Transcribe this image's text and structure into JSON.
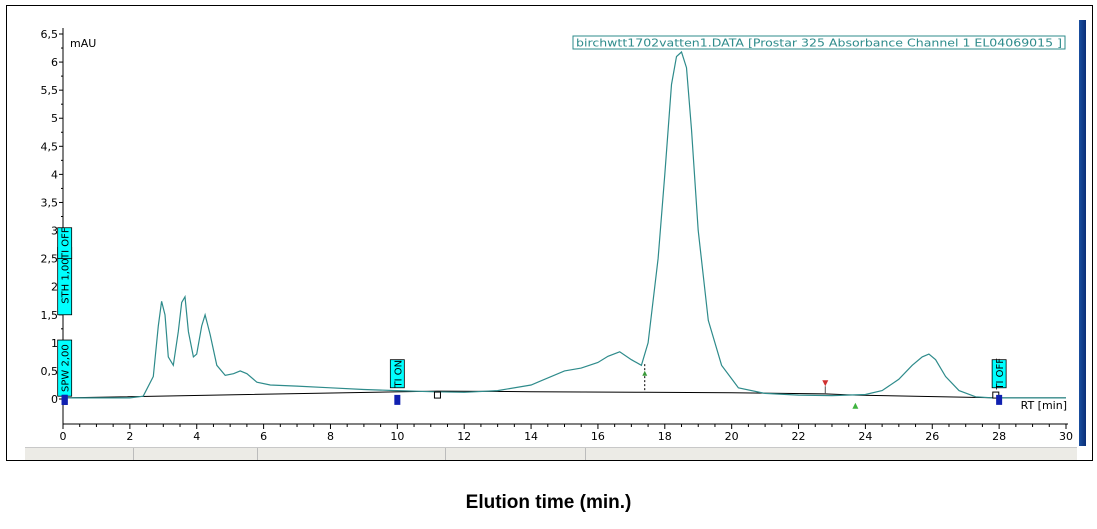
{
  "chart_data": {
    "type": "line",
    "title": "",
    "xlabel": "RT [min]",
    "ylabel": "mAU",
    "caption": "Elution time (min.)",
    "legend": "birchwtt1702vatten1.DATA [Prostar 325 Absorbance Channel 1 EL04069015      ]",
    "xlim": [
      0,
      30
    ],
    "ylim": [
      0,
      6.5
    ],
    "x_ticks": [
      "0",
      "2",
      "4",
      "6",
      "8",
      "10",
      "12",
      "14",
      "16",
      "18",
      "20",
      "22",
      "24",
      "26",
      "28",
      "30"
    ],
    "y_ticks": [
      "0",
      "0,5",
      "1",
      "1,5",
      "2",
      "2,5",
      "3",
      "3,5",
      "4",
      "4,5",
      "5",
      "5,5",
      "6",
      "6,5"
    ],
    "grid": false,
    "series": [
      {
        "name": "birchwtt1702vatten1.DATA [Prostar 325 Absorbance Channel 1 EL04069015      ]",
        "color": "#2e8b8b",
        "x": [
          0,
          0.5,
          1,
          1.5,
          2,
          2.4,
          2.7,
          2.85,
          2.95,
          3.05,
          3.15,
          3.3,
          3.45,
          3.55,
          3.65,
          3.75,
          3.9,
          4.0,
          4.15,
          4.25,
          4.4,
          4.6,
          4.85,
          5.1,
          5.3,
          5.5,
          5.8,
          6.2,
          7,
          8,
          9,
          10,
          11,
          12,
          13,
          14,
          15,
          15.5,
          16,
          16.3,
          16.65,
          17.0,
          17.3,
          17.5,
          17.8,
          18.0,
          18.2,
          18.35,
          18.5,
          18.65,
          18.8,
          19.0,
          19.3,
          19.7,
          20.2,
          21,
          22,
          23,
          24,
          24.5,
          25.0,
          25.4,
          25.7,
          25.9,
          26.1,
          26.4,
          26.8,
          27.3,
          27.8,
          28,
          28.5,
          29,
          30
        ],
        "y": [
          0.02,
          0.02,
          0.02,
          0.02,
          0.02,
          0.05,
          0.4,
          1.3,
          1.74,
          1.5,
          0.75,
          0.6,
          1.2,
          1.72,
          1.82,
          1.2,
          0.75,
          0.8,
          1.3,
          1.5,
          1.15,
          0.6,
          0.42,
          0.45,
          0.5,
          0.45,
          0.3,
          0.25,
          0.23,
          0.2,
          0.17,
          0.15,
          0.13,
          0.12,
          0.15,
          0.25,
          0.5,
          0.55,
          0.65,
          0.76,
          0.84,
          0.7,
          0.6,
          1.0,
          2.5,
          4.0,
          5.6,
          6.1,
          6.18,
          5.9,
          4.8,
          3.0,
          1.4,
          0.6,
          0.2,
          0.1,
          0.07,
          0.06,
          0.08,
          0.15,
          0.35,
          0.6,
          0.75,
          0.8,
          0.7,
          0.4,
          0.15,
          0.04,
          0.02,
          0.02,
          0.02,
          0.02,
          0.02
        ]
      },
      {
        "name": "",
        "color": "#000000",
        "x": [
          0,
          11.2,
          14,
          17.4,
          20,
          22.8,
          23.7,
          28,
          30
        ],
        "y": [
          0.02,
          0.14,
          0.13,
          0.12,
          0.11,
          0.09,
          0.07,
          0.02,
          0.02
        ]
      }
    ],
    "event_markers": [
      {
        "label": "SPW 2,00",
        "time": 0.05
      },
      {
        "label": "STH 1,00",
        "time": 0.05
      },
      {
        "label": "TI OFF",
        "time": 0.05
      },
      {
        "label": "TI ON",
        "time": 10.0
      },
      {
        "label": "TI OFF",
        "time": 28.0
      }
    ],
    "integration_markers": [
      {
        "time": 11.2,
        "symbol": "baseline-start-square"
      },
      {
        "time": 17.4,
        "symbol": "peak-split-drop"
      },
      {
        "time": 22.8,
        "symbol": "red-down-triangle"
      },
      {
        "time": 23.7,
        "symbol": "green-up-triangle"
      },
      {
        "time": 27.9,
        "symbol": "baseline-end-square"
      }
    ]
  }
}
